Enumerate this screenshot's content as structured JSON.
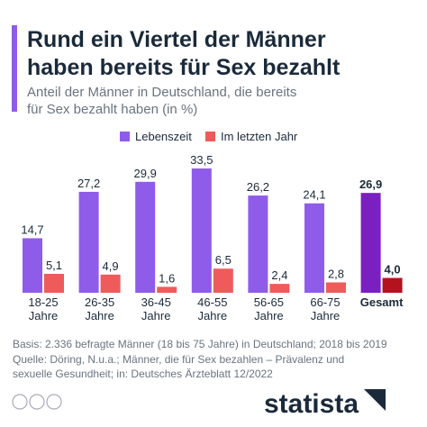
{
  "chart_data": {
    "type": "bar",
    "title": [
      "Rund ein Viertel der Männer",
      "haben bereits für Sex bezahlt"
    ],
    "subtitle": [
      "Anteil der Männer in Deutschland, die bereits",
      "für Sex bezahlt haben (in %)"
    ],
    "categories": [
      [
        "18-25",
        "Jahre"
      ],
      [
        "26-35",
        "Jahre"
      ],
      [
        "36-45",
        "Jahre"
      ],
      [
        "46-55",
        "Jahre"
      ],
      [
        "56-65",
        "Jahre"
      ],
      [
        "66-75",
        "Jahre"
      ],
      [
        "Gesamt"
      ]
    ],
    "series": [
      {
        "name": "Lebenszeit",
        "color": "#8e5ce8",
        "colors": [
          "#8e5ce8",
          "#8e5ce8",
          "#8e5ce8",
          "#8e5ce8",
          "#8e5ce8",
          "#8e5ce8",
          "#7a1fc0"
        ],
        "values": [
          14.7,
          27.2,
          29.9,
          33.5,
          26.2,
          24.1,
          26.9
        ],
        "value_labels": [
          "14,7",
          "27,2",
          "29,9",
          "33,5",
          "26,2",
          "24,1",
          "26,9"
        ]
      },
      {
        "name": "Im letzten Jahr",
        "color": "#ef5b5b",
        "colors": [
          "#ef5b5b",
          "#ef5b5b",
          "#ef5b5b",
          "#ef5b5b",
          "#ef5b5b",
          "#ef5b5b",
          "#b3121e"
        ],
        "values": [
          5.1,
          4.9,
          1.6,
          6.5,
          2.4,
          2.8,
          4.0
        ],
        "value_labels": [
          "5,1",
          "4,9",
          "1,6",
          "6,5",
          "2,4",
          "2,8",
          "4,0"
        ]
      }
    ],
    "notes": [
      "Basis: 2.336 befragte Männer (18 bis 75 Jahre) in Deutschland; 2018 bis 2019",
      "Quelle: Döring, N.u.a.; Männer, die für Sex bezahlen – Prävalenz und",
      "sexuelle Gesundheit; in: Deutsches Ärzteblatt 12/2022"
    ],
    "brand": "statista"
  }
}
